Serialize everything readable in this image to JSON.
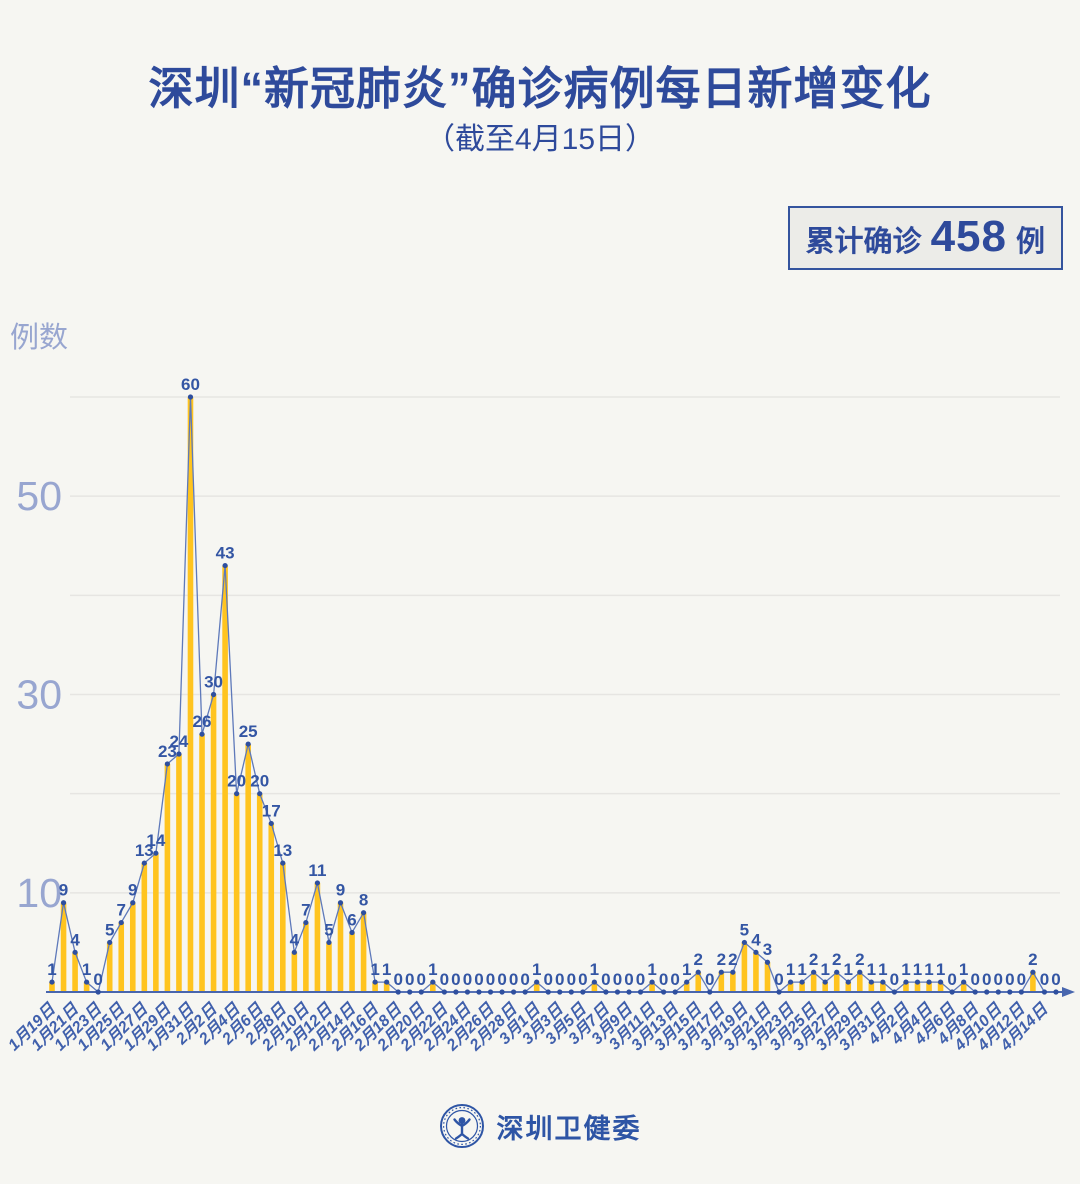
{
  "page": {
    "title": "深圳“新冠肺炎”确诊病例每日新增变化",
    "subtitle": "（截至4月15日）"
  },
  "badge": {
    "label": "累计确诊",
    "value": "458",
    "unit": "例"
  },
  "footer": {
    "brand": "深圳卫健委"
  },
  "colors": {
    "title_blue": "#2e4a9b",
    "value_label_blue": "#3456a4",
    "axis_blue": "#4866ae",
    "x_tick_blue": "#4060ac",
    "y_tick_gray_blue": "#98a6d0",
    "bar_yellow": "#ffc41f",
    "line_blue": "#5e79ba",
    "marker_blue": "#2e4f9f",
    "grid_gray": "#e6e5e2",
    "background": "#f6f6f2",
    "badge_bg": "#ecece8"
  },
  "chart_data": {
    "type": "bar",
    "overlay": "line-with-markers",
    "title": "",
    "xlabel": "",
    "ylabel": "例数",
    "ylim": [
      0,
      62
    ],
    "grid_values": [
      10,
      20,
      30,
      40,
      50,
      60
    ],
    "y_tick_labels": [
      "10",
      "30",
      "50"
    ],
    "legend": "none",
    "points_per_x_tick": 2,
    "x_tick_labels": [
      "1月19日",
      "1月21日",
      "1月23日",
      "1月25日",
      "1月27日",
      "1月29日",
      "1月31日",
      "2月2日",
      "2月4日",
      "2月6日",
      "2月8日",
      "2月10日",
      "2月12日",
      "2月14日",
      "2月16日",
      "2月18日",
      "2月20日",
      "2月22日",
      "2月24日",
      "2月26日",
      "2月28日",
      "3月1日",
      "3月3日",
      "3月5日",
      "3月7日",
      "3月9日",
      "3月11日",
      "3月13日",
      "3月15日",
      "3月17日",
      "3月19日",
      "3月21日",
      "3月23日",
      "3月25日",
      "3月27日",
      "3月29日",
      "3月31日",
      "4月2日",
      "4月4日",
      "4月6日",
      "4月8日",
      "4月10日",
      "4月12日",
      "4月14日"
    ],
    "values": [
      1,
      9,
      4,
      1,
      0,
      5,
      7,
      9,
      13,
      14,
      23,
      24,
      60,
      26,
      30,
      43,
      20,
      25,
      20,
      17,
      13,
      4,
      7,
      11,
      5,
      9,
      6,
      8,
      1,
      1,
      0,
      0,
      0,
      1,
      0,
      0,
      0,
      0,
      0,
      0,
      0,
      0,
      1,
      0,
      0,
      0,
      0,
      1,
      0,
      0,
      0,
      0,
      1,
      0,
      0,
      1,
      2,
      0,
      2,
      2,
      5,
      4,
      3,
      0,
      1,
      1,
      2,
      1,
      2,
      1,
      2,
      1,
      1,
      0,
      1,
      1,
      1,
      1,
      0,
      1,
      0,
      0,
      0,
      0,
      0,
      2,
      0,
      0
    ]
  }
}
